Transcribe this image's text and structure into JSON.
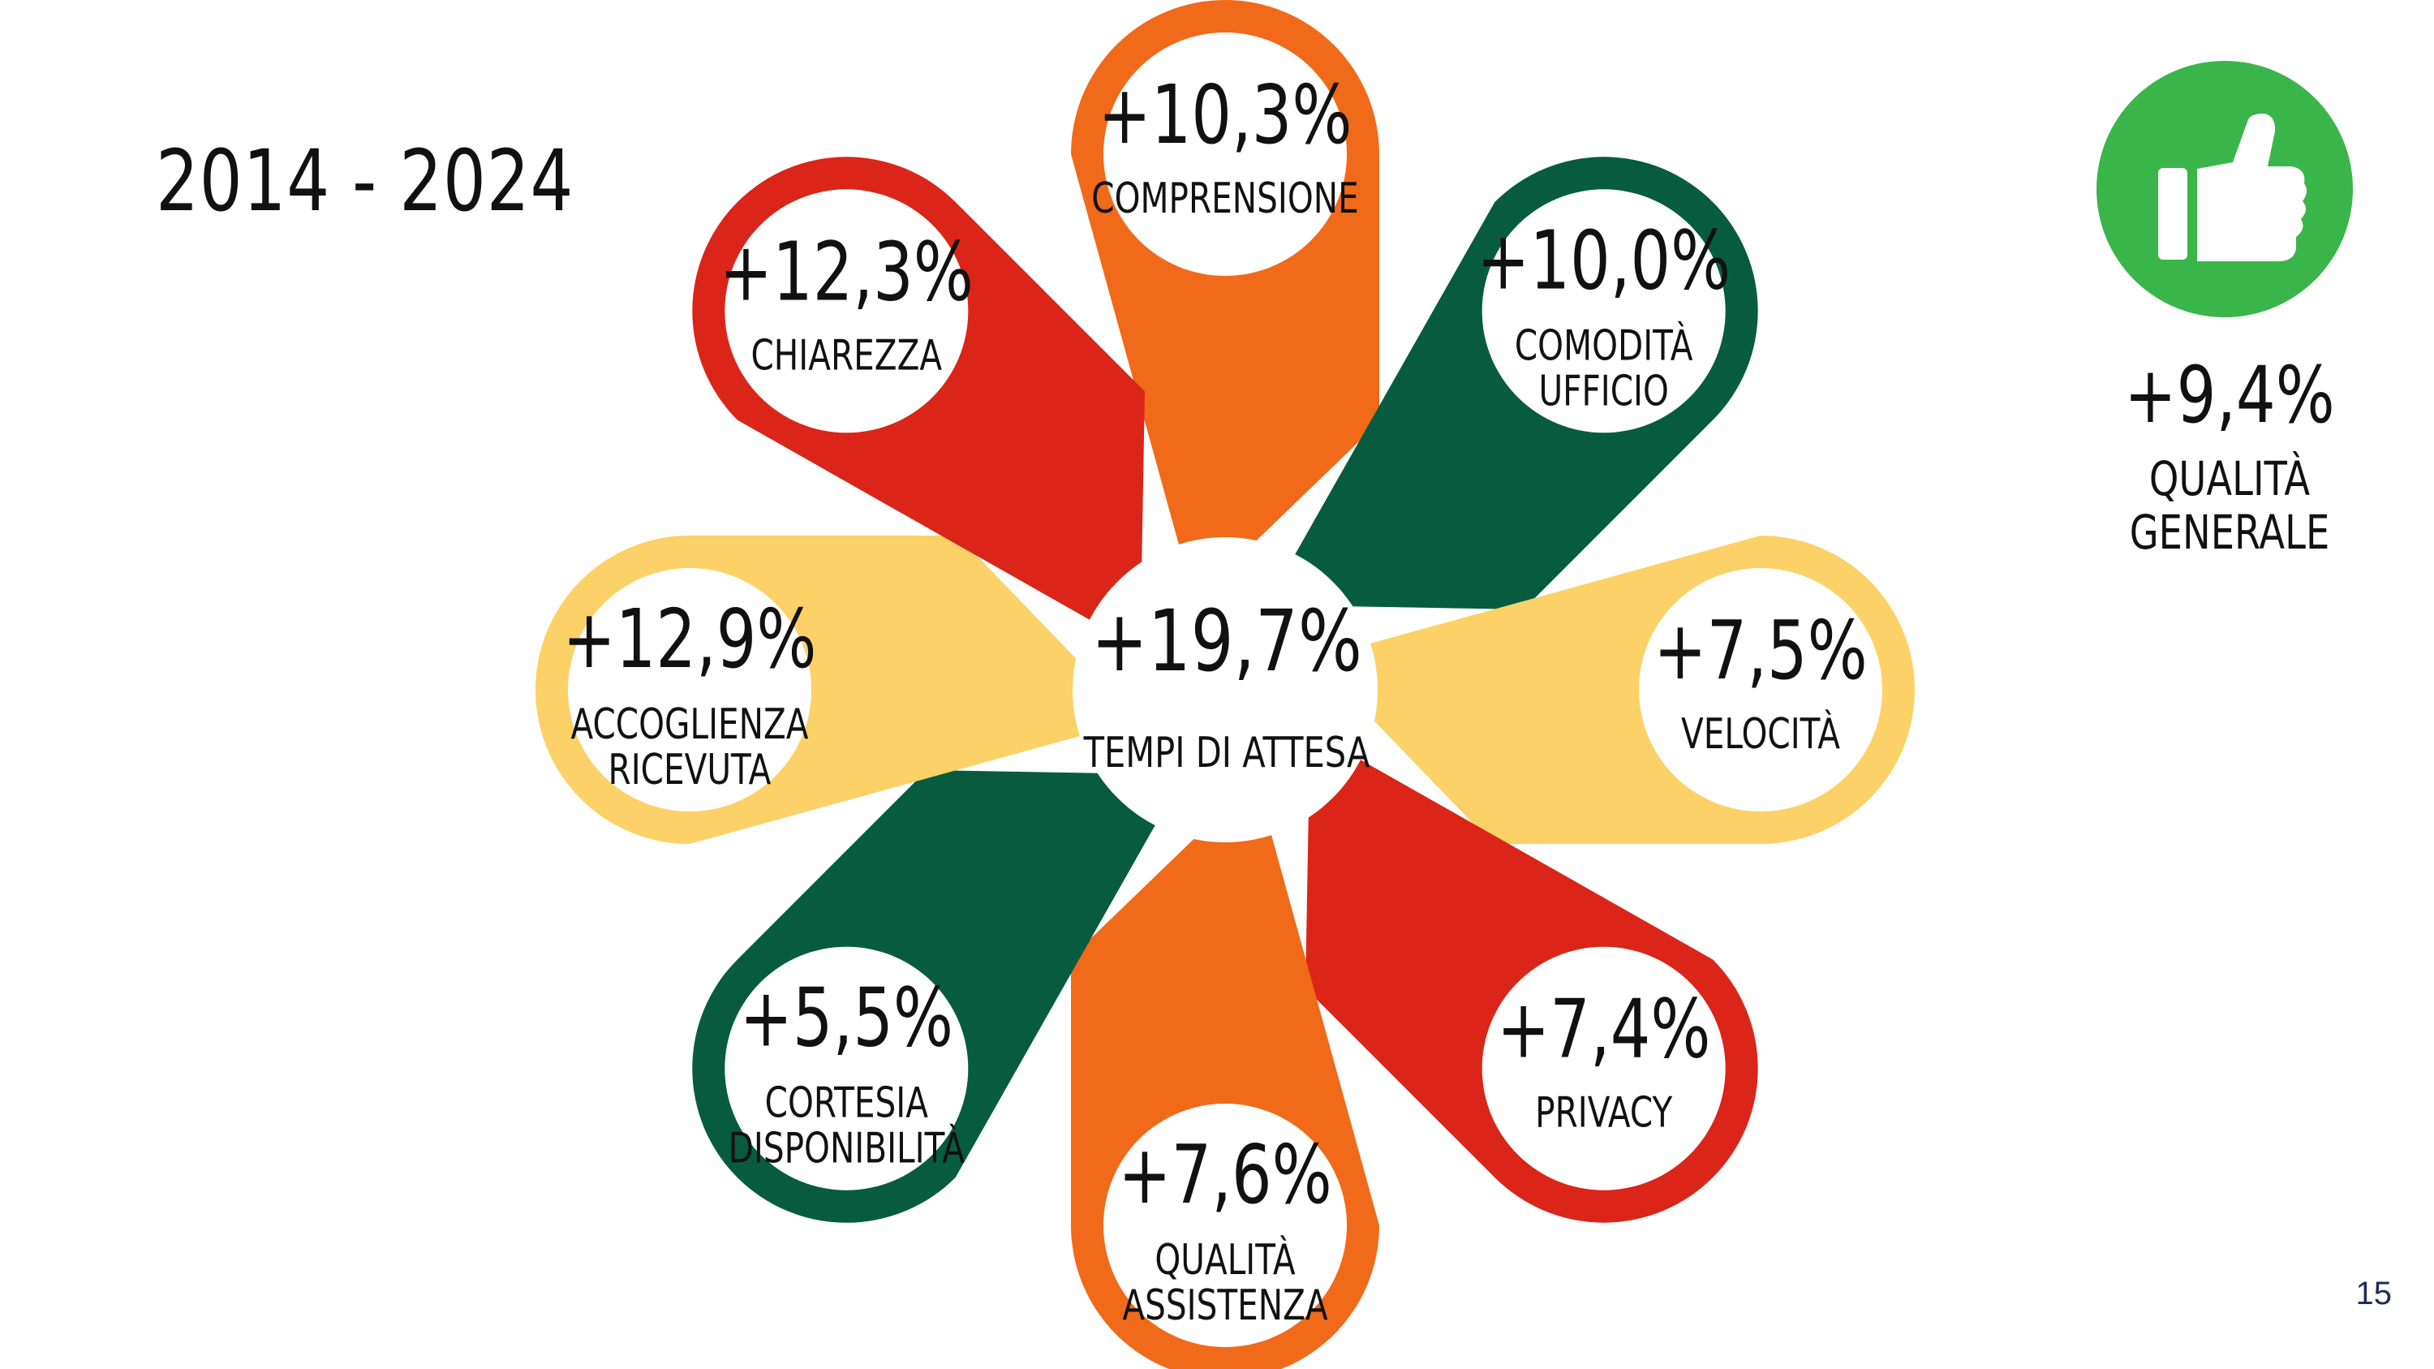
{
  "period": "2014 - 2024",
  "page_number": "15",
  "center": {
    "value": "+19,7%",
    "label": "TEMPI DI ATTESA"
  },
  "petals": [
    {
      "value": "+10,3%",
      "label_lines": [
        "COMPRENSIONE"
      ],
      "color": "#F06A1A"
    },
    {
      "value": "+10,0%",
      "label_lines": [
        "COMODITÀ",
        "UFFICIO"
      ],
      "color": "#075C3F"
    },
    {
      "value": "+7,5%",
      "label_lines": [
        "VELOCITÀ"
      ],
      "color": "#FCD167"
    },
    {
      "value": "+7,4%",
      "label_lines": [
        "PRIVACY"
      ],
      "color": "#DA2518"
    },
    {
      "value": "+7,6%",
      "label_lines": [
        "QUALITÀ",
        "ASSISTENZA"
      ],
      "color": "#F06A1A"
    },
    {
      "value": "+5,5%",
      "label_lines": [
        "CORTESIA",
        "DISPONIBILITÀ"
      ],
      "color": "#075C3F"
    },
    {
      "value": "+12,9%",
      "label_lines": [
        "ACCOGLIENZA",
        "RICEVUTA"
      ],
      "color": "#FCD167"
    },
    {
      "value": "+12,3%",
      "label_lines": [
        "CHIAREZZA"
      ],
      "color": "#DA2518"
    }
  ],
  "summary": {
    "value": "+9,4%",
    "label_lines": [
      "QUALITÀ",
      "GENERALE"
    ],
    "icon": "thumbs-up-icon",
    "color": "#3AB54A"
  }
}
